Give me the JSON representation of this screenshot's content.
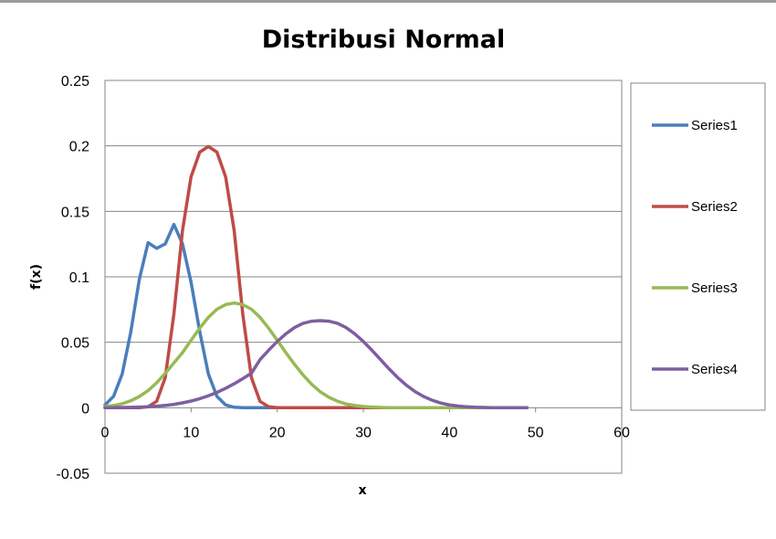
{
  "chart_data": {
    "type": "line",
    "title": "Distribusi Normal",
    "xlabel": "x",
    "ylabel": "f(x)",
    "xlim": [
      0,
      60
    ],
    "ylim": [
      -0.05,
      0.25
    ],
    "x_ticks": [
      "0",
      "10",
      "20",
      "30",
      "40",
      "50",
      "60"
    ],
    "y_ticks": [
      "-0.05",
      "0",
      "0.05",
      "0.1",
      "0.15",
      "0.2",
      "0.25"
    ],
    "grid": "horizontal",
    "legend_position": "right",
    "x": [
      0,
      1,
      2,
      3,
      4,
      5,
      6,
      7,
      8,
      9,
      10,
      11,
      12,
      13,
      14,
      15,
      16,
      17,
      18,
      19,
      20,
      21,
      22,
      23,
      24,
      25,
      26,
      27,
      28,
      29,
      30,
      31,
      32,
      33,
      34,
      35,
      36,
      37,
      38,
      39,
      40,
      41,
      42,
      43,
      44,
      45,
      46,
      47,
      48,
      49
    ],
    "series": [
      {
        "name": "Series1",
        "color": "#4a7ebb",
        "values": [
          0.0022,
          0.0087,
          0.0259,
          0.0581,
          0.0984,
          0.126,
          0.1218,
          0.1251,
          0.14,
          0.1251,
          0.0958,
          0.0581,
          0.0259,
          0.0087,
          0.0022,
          0.0004,
          0.0001,
          0,
          0,
          0,
          0,
          0,
          0,
          0,
          0,
          0,
          0,
          0,
          0,
          0,
          0,
          0,
          0,
          0,
          0,
          0,
          0,
          0,
          0,
          0,
          0,
          0,
          0,
          0,
          0,
          0,
          0,
          0,
          0,
          0
        ]
      },
      {
        "name": "Series2",
        "color": "#be4b48",
        "values": [
          0,
          0,
          0,
          0,
          0.0001,
          0.0008,
          0.0049,
          0.023,
          0.0717,
          0.1354,
          0.1765,
          0.1952,
          0.1995,
          0.1952,
          0.1765,
          0.1354,
          0.0717,
          0.023,
          0.0049,
          0.0008,
          0.0001,
          0,
          0,
          0,
          0,
          0,
          0,
          0,
          0,
          0,
          0,
          0,
          0,
          0,
          0,
          0,
          0,
          0,
          0,
          0,
          0,
          0,
          0,
          0,
          0,
          0,
          0,
          0,
          0,
          0
        ]
      },
      {
        "name": "Series3",
        "color": "#98b954",
        "values": [
          0.0009,
          0.0017,
          0.0031,
          0.0053,
          0.0086,
          0.0131,
          0.0191,
          0.0263,
          0.0342,
          0.0421,
          0.0515,
          0.0608,
          0.069,
          0.0752,
          0.0788,
          0.08,
          0.0788,
          0.0752,
          0.069,
          0.0608,
          0.0515,
          0.0421,
          0.0332,
          0.025,
          0.0179,
          0.0122,
          0.008,
          0.005,
          0.0029,
          0.0017,
          0.0009,
          0.0005,
          0.0002,
          0.0001,
          0,
          0,
          0,
          0,
          0,
          0,
          0,
          0,
          0,
          0,
          0,
          0,
          0,
          0,
          0,
          0
        ]
      },
      {
        "name": "Series4",
        "color": "#7d5fa0",
        "values": [
          0.0001,
          0.0001,
          0.0002,
          0.0003,
          0.0005,
          0.0008,
          0.0012,
          0.0018,
          0.0026,
          0.0037,
          0.0051,
          0.0069,
          0.0091,
          0.0117,
          0.0148,
          0.0183,
          0.0222,
          0.0264,
          0.0367,
          0.0439,
          0.0506,
          0.0565,
          0.0612,
          0.0645,
          0.0661,
          0.0665,
          0.0661,
          0.0645,
          0.0612,
          0.0565,
          0.0506,
          0.0439,
          0.0367,
          0.0296,
          0.023,
          0.0172,
          0.0124,
          0.0086,
          0.0057,
          0.0036,
          0.0022,
          0.0013,
          0.0007,
          0.0004,
          0.0002,
          0.0001,
          0.0001,
          0,
          0,
          0
        ]
      }
    ]
  }
}
